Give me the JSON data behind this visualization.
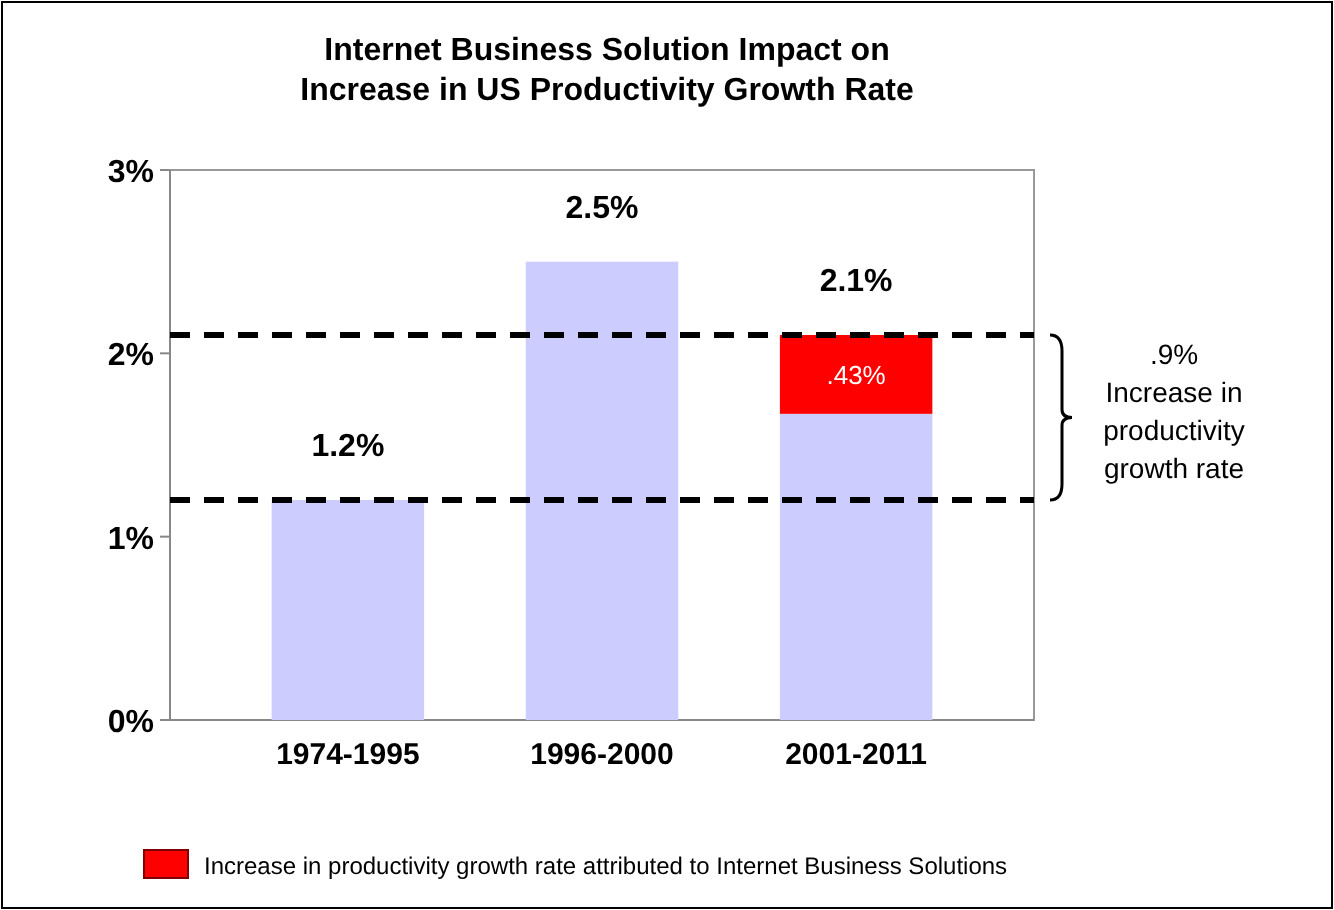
{
  "chart_data": {
    "type": "bar",
    "title": "Internet Business Solution Impact on\nIncrease in US Productivity Growth Rate",
    "categories": [
      "1974-1995",
      "1996-2000",
      "2001-2011"
    ],
    "stacked": true,
    "series": [
      {
        "color": "#ccccff",
        "values": [
          1.2,
          2.5,
          1.67
        ]
      },
      {
        "name": "Increase in productivity growth rate attributed to Internet Business Solutions",
        "color": "#ff0000",
        "values": [
          0,
          0,
          0.43
        ],
        "value_labels": [
          null,
          null,
          ".43%"
        ]
      }
    ],
    "totals": [
      "1.2%",
      "2.5%",
      "2.1%"
    ],
    "ylim": [
      0,
      3
    ],
    "yticks": [
      {
        "value": 0,
        "label": "0%"
      },
      {
        "value": 1,
        "label": "1%"
      },
      {
        "value": 2,
        "label": "2%"
      },
      {
        "value": 3,
        "label": "3%"
      }
    ],
    "grid": false,
    "legend": "bottom",
    "ref_lines": [
      {
        "axis": "y",
        "value": 2.1,
        "color": "#000000",
        "line_style": "dashed"
      },
      {
        "axis": "y",
        "value": 1.2,
        "color": "#000000",
        "line_style": "dashed"
      }
    ],
    "annotations": [
      ".9%\nIncrease in\nproductivity\ngrowth rate"
    ]
  }
}
